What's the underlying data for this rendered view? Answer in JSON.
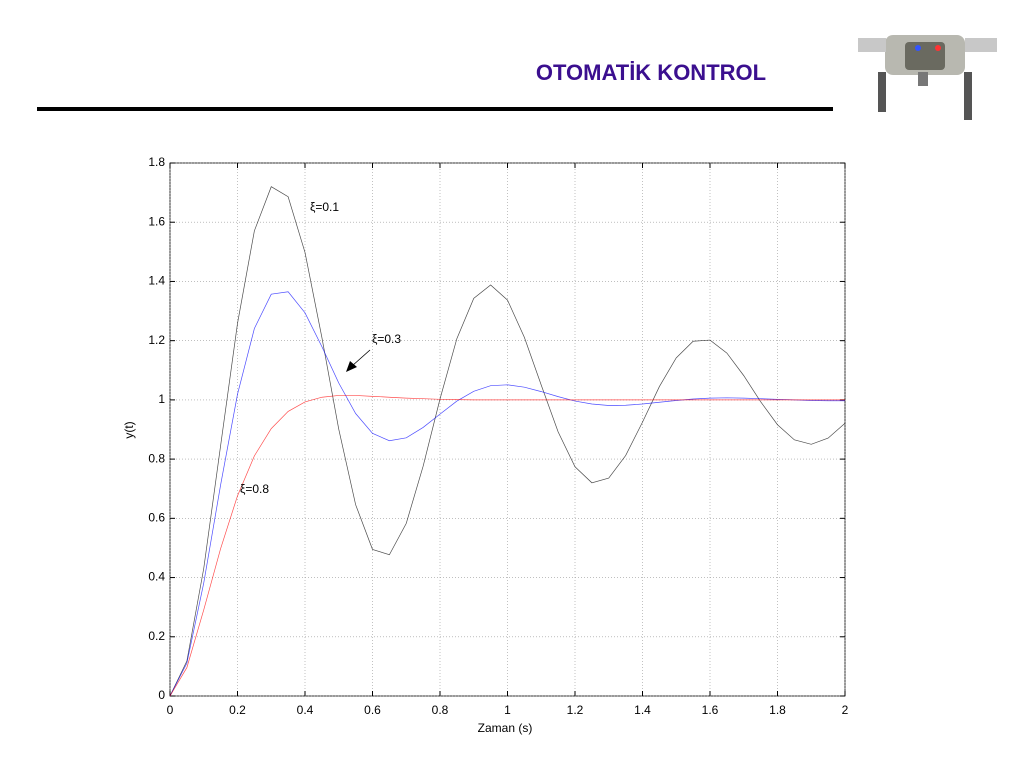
{
  "slide": {
    "title": "OTOMATİK KONTROL"
  },
  "chart_data": {
    "type": "line",
    "xlabel": "Zaman (s)",
    "ylabel": "y(t)",
    "annotations": [
      "ξ=0.1",
      "ξ=0.3",
      "ξ=0.8"
    ],
    "x": [
      0,
      0.05,
      0.1,
      0.15,
      0.2,
      0.25,
      0.3,
      0.35,
      0.4,
      0.45,
      0.5,
      0.55,
      0.6,
      0.65,
      0.7,
      0.75,
      0.8,
      0.85,
      0.9,
      0.95,
      1,
      1.05,
      1.1,
      1.15,
      1.2,
      1.25,
      1.3,
      1.35,
      1.4,
      1.45,
      1.5,
      1.55,
      1.6,
      1.65,
      1.7,
      1.75,
      1.8,
      1.85,
      1.9,
      1.95,
      2
    ],
    "series": [
      {
        "color": "#000000",
        "values": [
          0,
          0.118,
          0.431,
          0.846,
          1.258,
          1.571,
          1.72,
          1.686,
          1.498,
          1.211,
          0.901,
          0.646,
          0.495,
          0.477,
          0.583,
          0.776,
          1.003,
          1.207,
          1.343,
          1.388,
          1.337,
          1.211,
          1.05,
          0.892,
          0.774,
          0.72,
          0.736,
          0.812,
          0.925,
          1.045,
          1.142,
          1.198,
          1.202,
          1.158,
          1.082,
          0.994,
          0.916,
          0.865,
          0.85,
          0.871,
          0.921
        ]
      },
      {
        "color": "#0000ff",
        "values": [
          0,
          0.111,
          0.382,
          0.713,
          1.019,
          1.241,
          1.357,
          1.365,
          1.294,
          1.18,
          1.057,
          0.954,
          0.887,
          0.862,
          0.872,
          0.907,
          0.952,
          0.996,
          1.029,
          1.048,
          1.051,
          1.043,
          1.028,
          1.011,
          0.996,
          0.986,
          0.981,
          0.982,
          0.986,
          0.992,
          0.998,
          1.003,
          1.006,
          1.007,
          1.006,
          1.004,
          1.002,
          1.0,
          0.998,
          0.997,
          0.997
        ]
      },
      {
        "color": "#ff0000",
        "values": [
          0,
          0.096,
          0.291,
          0.498,
          0.676,
          0.811,
          0.903,
          0.961,
          0.993,
          1.009,
          1.015,
          1.015,
          1.012,
          1.009,
          1.006,
          1.004,
          1.002,
          1.001,
          1.0,
          1.0,
          1.0,
          1.0,
          1.0,
          1.0,
          1.0,
          1.0,
          1.0,
          1.0,
          1.0,
          1.0,
          1.0,
          1.0,
          1.0,
          1.0,
          1.0,
          1.0,
          1.0,
          1.0,
          1.0,
          1.0,
          1.0
        ]
      }
    ],
    "xlim": [
      0,
      2
    ],
    "xticks": [
      0,
      0.2,
      0.4,
      0.6,
      0.8,
      1,
      1.2,
      1.4,
      1.6,
      1.8,
      2
    ],
    "ylim": [
      0,
      1.8
    ],
    "yticks": [
      0,
      0.2,
      0.4,
      0.6,
      0.8,
      1,
      1.2,
      1.4,
      1.6,
      1.8
    ],
    "grid": true
  }
}
